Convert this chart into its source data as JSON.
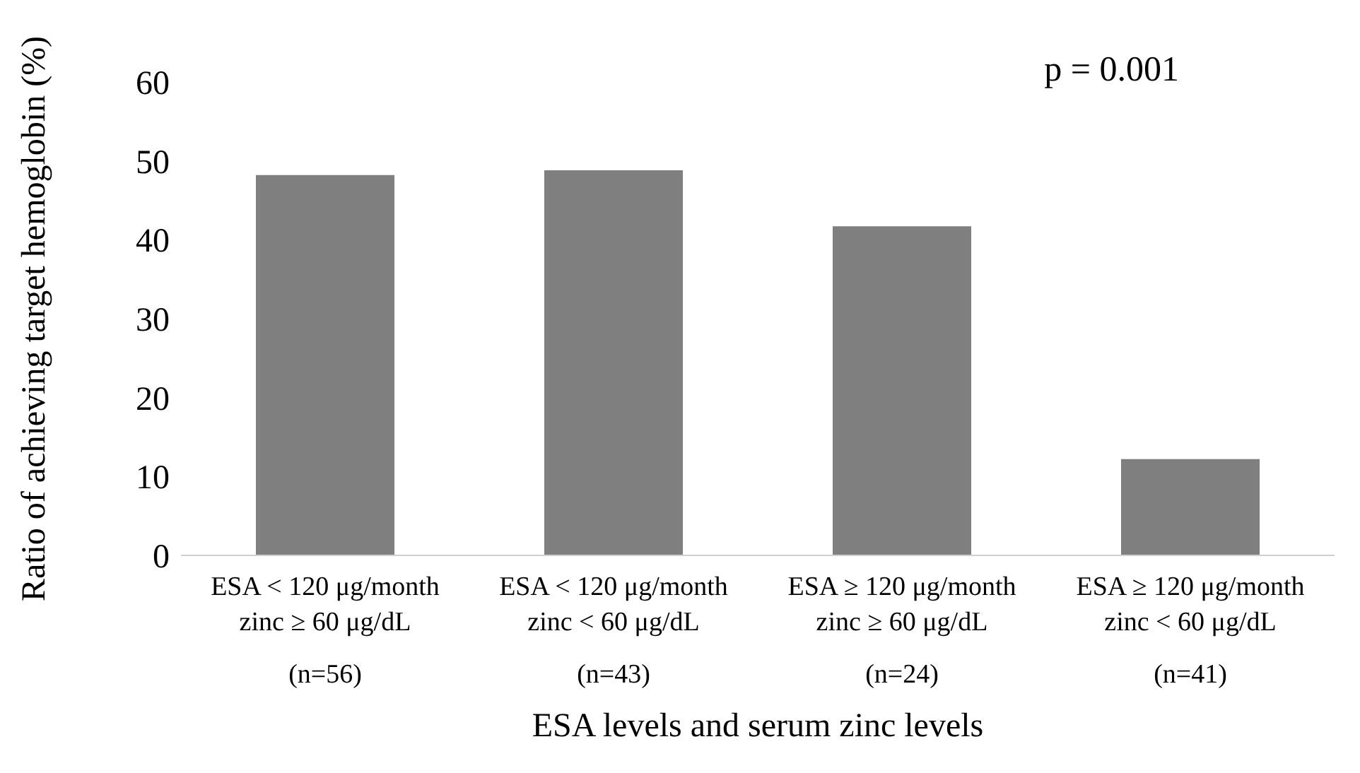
{
  "chart_data": {
    "type": "bar",
    "xlabel": "ESA levels and serum zinc levels",
    "ylabel": "Ratio of  achieving target hemoglobin (%)",
    "categories": [
      "ESA < 120 μg/month\nzinc ≥ 60 μg/dL\n(n=56)",
      "ESA < 120 μg/month\nzinc < 60 μg/dL\n(n=43)",
      "ESA ≥ 120 μg/month\nzinc ≥ 60 μg/dL\n(n=24)",
      "ESA ≥ 120 μg/month\nzinc < 60 μg/dL\n(n=41)"
    ],
    "values": [
      48.2,
      48.8,
      41.7,
      12.2
    ],
    "color": "#7f7f7f",
    "ylim": [
      0,
      60
    ],
    "yticks": [
      0,
      10,
      20,
      30,
      40,
      50,
      60
    ],
    "grid": false,
    "legend": false,
    "annotations": [
      "p = 0.001"
    ]
  }
}
